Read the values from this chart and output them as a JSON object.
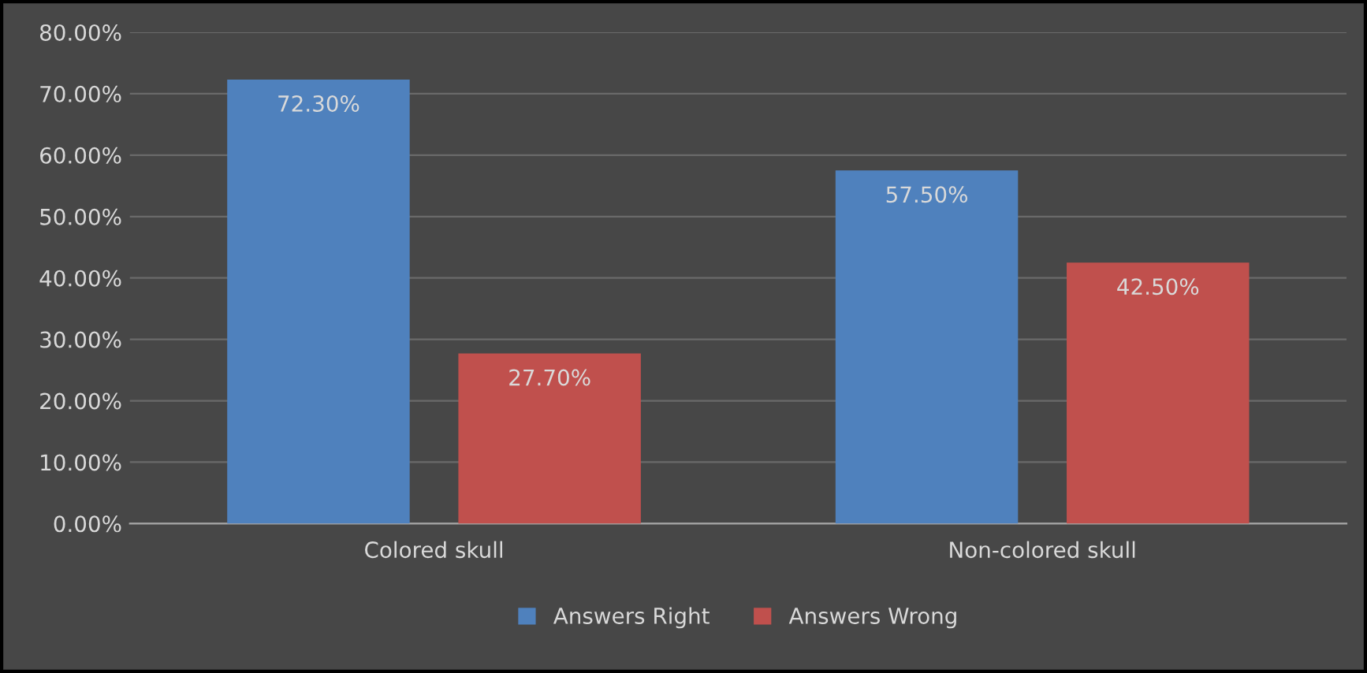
{
  "chart_data": {
    "type": "bar",
    "categories": [
      "Colored skull",
      "Non-colored skull"
    ],
    "series": [
      {
        "name": "Answers Right",
        "color": "#4f81bd",
        "values": [
          72.3,
          57.5
        ],
        "value_labels": [
          "72.30%",
          "57.50%"
        ]
      },
      {
        "name": "Answers Wrong",
        "color": "#c0504d",
        "values": [
          27.7,
          42.5
        ],
        "value_labels": [
          "27.70%",
          "42.50%"
        ]
      }
    ],
    "ylim": [
      0,
      80
    ],
    "yticks": [
      {
        "value": 0,
        "label": "0.00%"
      },
      {
        "value": 10,
        "label": "10.00%"
      },
      {
        "value": 20,
        "label": "20.00%"
      },
      {
        "value": 30,
        "label": "30.00%"
      },
      {
        "value": 40,
        "label": "40.00%"
      },
      {
        "value": 50,
        "label": "50.00%"
      },
      {
        "value": 60,
        "label": "60.00%"
      },
      {
        "value": 70,
        "label": "70.00%"
      },
      {
        "value": 80,
        "label": "80.00%"
      }
    ],
    "grid": "y",
    "legend": "bottom"
  }
}
